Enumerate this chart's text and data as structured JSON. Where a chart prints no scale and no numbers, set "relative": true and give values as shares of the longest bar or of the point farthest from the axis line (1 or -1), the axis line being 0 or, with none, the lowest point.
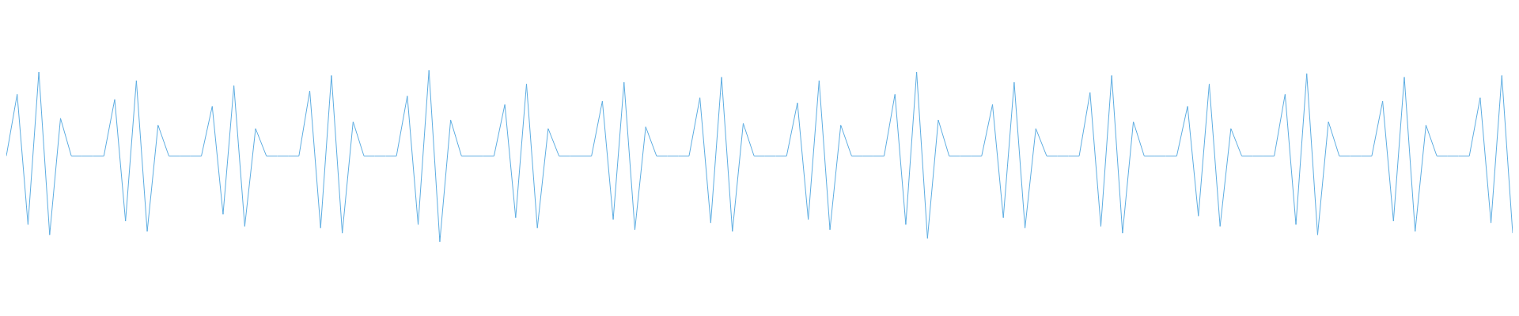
{
  "chart_data": {
    "type": "line",
    "relative": true,
    "marker": "none",
    "line_style": "solid",
    "legend": false,
    "categories": [
      null,
      null,
      null,
      null,
      null,
      null,
      null,
      null,
      null,
      null,
      null,
      null,
      null,
      null,
      null,
      null,
      null,
      null,
      null,
      null,
      null,
      null,
      null,
      null,
      null,
      null,
      null,
      null,
      null,
      null,
      null,
      null,
      null,
      null,
      null,
      null,
      null,
      null,
      null,
      null,
      null,
      null,
      null,
      null,
      null,
      null,
      null,
      null,
      null,
      null,
      null,
      null,
      null,
      null,
      null,
      null,
      null,
      null,
      null,
      null,
      null,
      null,
      null,
      null,
      null,
      null,
      null,
      null,
      null,
      null,
      null,
      null,
      null,
      null,
      null,
      null,
      null,
      null,
      null,
      null,
      null,
      null,
      null,
      null,
      null,
      null,
      null,
      null,
      null,
      null,
      null,
      null,
      null,
      null,
      null,
      null,
      null,
      null,
      null,
      null,
      null,
      null,
      null,
      null,
      null,
      null,
      null,
      null,
      null,
      null,
      null,
      null,
      null,
      null,
      null,
      null,
      null,
      null,
      null,
      null,
      null,
      null,
      null,
      null,
      null,
      null,
      null,
      null,
      null,
      null,
      null,
      null,
      null,
      null,
      null,
      null,
      null,
      null,
      null,
      null
    ],
    "series": [
      {
        "color": "#5dade2",
        "values": [
          0.5,
          0.86,
          0.1,
          0.99,
          0.04,
          0.72,
          0.5,
          0.5,
          0.5,
          0.5,
          0.83,
          0.12,
          0.94,
          0.06,
          0.68,
          0.5,
          0.5,
          0.5,
          0.5,
          0.79,
          0.16,
          0.91,
          0.09,
          0.66,
          0.5,
          0.5,
          0.5,
          0.5,
          0.88,
          0.08,
          0.97,
          0.05,
          0.7,
          0.5,
          0.5,
          0.5,
          0.5,
          0.85,
          0.1,
          1,
          0,
          0.71,
          0.5,
          0.5,
          0.5,
          0.5,
          0.8,
          0.14,
          0.92,
          0.08,
          0.66,
          0.5,
          0.5,
          0.5,
          0.5,
          0.82,
          0.13,
          0.93,
          0.07,
          0.67,
          0.5,
          0.5,
          0.5,
          0.5,
          0.84,
          0.11,
          0.96,
          0.06,
          0.69,
          0.5,
          0.5,
          0.5,
          0.5,
          0.81,
          0.13,
          0.94,
          0.07,
          0.68,
          0.5,
          0.5,
          0.5,
          0.5,
          0.86,
          0.1,
          0.99,
          0.02,
          0.71,
          0.5,
          0.5,
          0.5,
          0.5,
          0.8,
          0.14,
          0.93,
          0.08,
          0.66,
          0.5,
          0.5,
          0.5,
          0.5,
          0.87,
          0.09,
          0.97,
          0.05,
          0.7,
          0.5,
          0.5,
          0.5,
          0.5,
          0.79,
          0.15,
          0.92,
          0.09,
          0.66,
          0.5,
          0.5,
          0.5,
          0.5,
          0.86,
          0.1,
          0.98,
          0.04,
          0.7,
          0.5,
          0.5,
          0.5,
          0.5,
          0.82,
          0.12,
          0.96,
          0.06,
          0.68,
          0.5,
          0.5,
          0.5,
          0.5,
          0.84,
          0.11,
          0.97,
          0.05
        ]
      }
    ]
  }
}
